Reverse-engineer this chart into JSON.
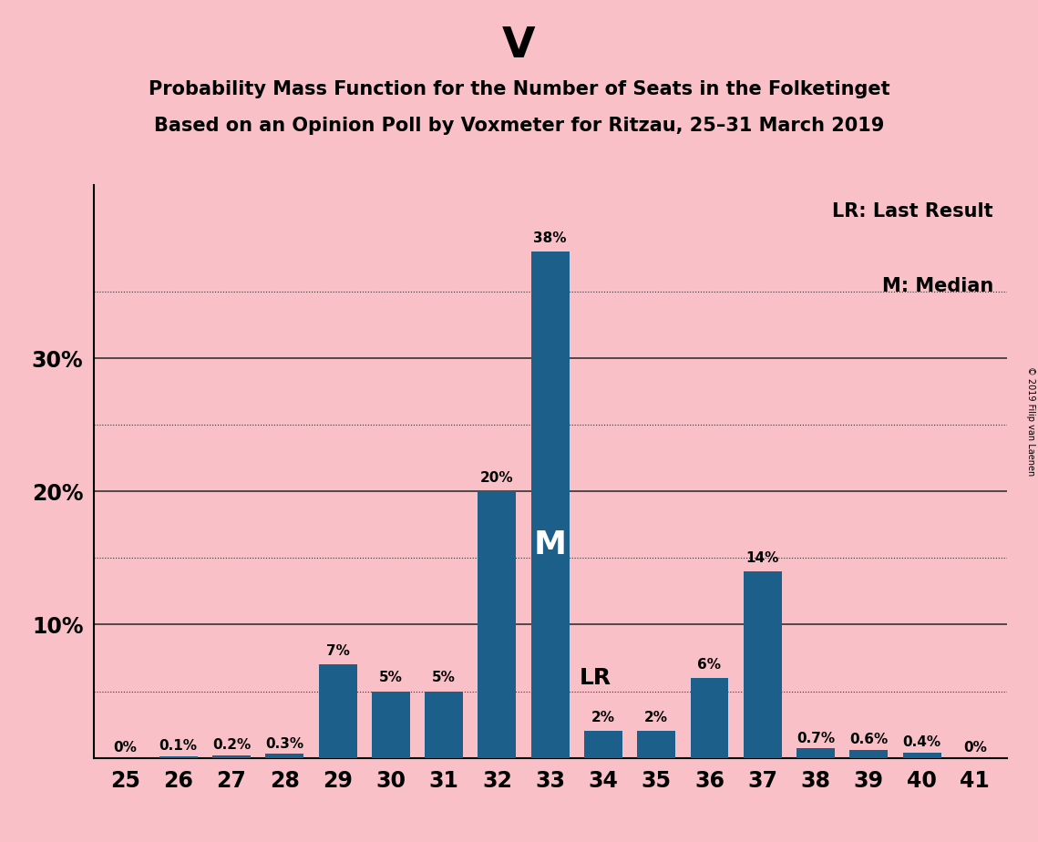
{
  "title_main": "V",
  "title_line1": "Probability Mass Function for the Number of Seats in the Folketinget",
  "title_line2": "Based on an Opinion Poll by Voxmeter for Ritzau, 25–31 March 2019",
  "copyright_text": "© 2019 Filip van Laenen",
  "legend_line1": "LR: Last Result",
  "legend_line2": "M: Median",
  "seats": [
    25,
    26,
    27,
    28,
    29,
    30,
    31,
    32,
    33,
    34,
    35,
    36,
    37,
    38,
    39,
    40,
    41
  ],
  "values": [
    0.0,
    0.1,
    0.2,
    0.3,
    7.0,
    5.0,
    5.0,
    20.0,
    38.0,
    2.0,
    2.0,
    6.0,
    14.0,
    0.7,
    0.6,
    0.4,
    0.0
  ],
  "labels": [
    "0%",
    "0.1%",
    "0.2%",
    "0.3%",
    "7%",
    "5%",
    "5%",
    "20%",
    "38%",
    "2%",
    "2%",
    "6%",
    "14%",
    "0.7%",
    "0.6%",
    "0.4%",
    "0%"
  ],
  "bar_color": "#1c5f8a",
  "background_color": "#f9c0c8",
  "median_seat": 33,
  "lr_seat": 34,
  "yticks": [
    0,
    10,
    20,
    30
  ],
  "ytick_labels": [
    "",
    "10%",
    "20%",
    "30%"
  ],
  "ylim": [
    0,
    43
  ],
  "grid_color": "#333333",
  "solid_gridlines": [
    10,
    20,
    30
  ],
  "dotted_gridlines": [
    5,
    15,
    25,
    35
  ]
}
